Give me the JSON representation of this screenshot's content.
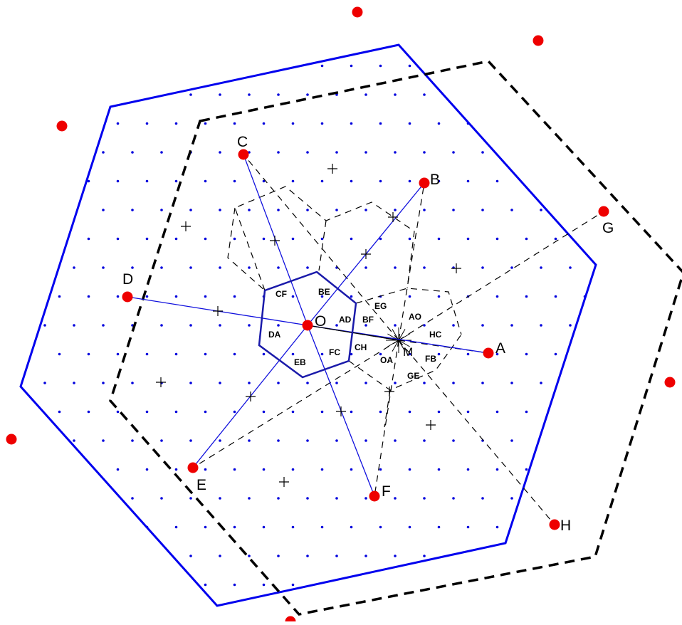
{
  "colors": {
    "lattice": "#0000dd",
    "points": "#ee0000",
    "outer_hexagon": "#0000ee",
    "inner_hexagon": "#1a1aaa",
    "spokes": "#1010dd",
    "dashed": "#000000"
  },
  "labels": {
    "O": "O",
    "A": "A",
    "B": "B",
    "C": "C",
    "D": "D",
    "E": "E",
    "F": "F",
    "G": "G",
    "H": "H",
    "M": "M"
  },
  "region_labels": {
    "CF": "CF",
    "BE": "BE",
    "AD": "AD",
    "DA": "DA",
    "EB": "EB",
    "FC": "FC",
    "BF": "BF",
    "EG": "EG",
    "AO": "AO",
    "HC": "HC",
    "FB": "FB",
    "GE": "GE",
    "OA": "OA",
    "CH": "CH"
  }
}
